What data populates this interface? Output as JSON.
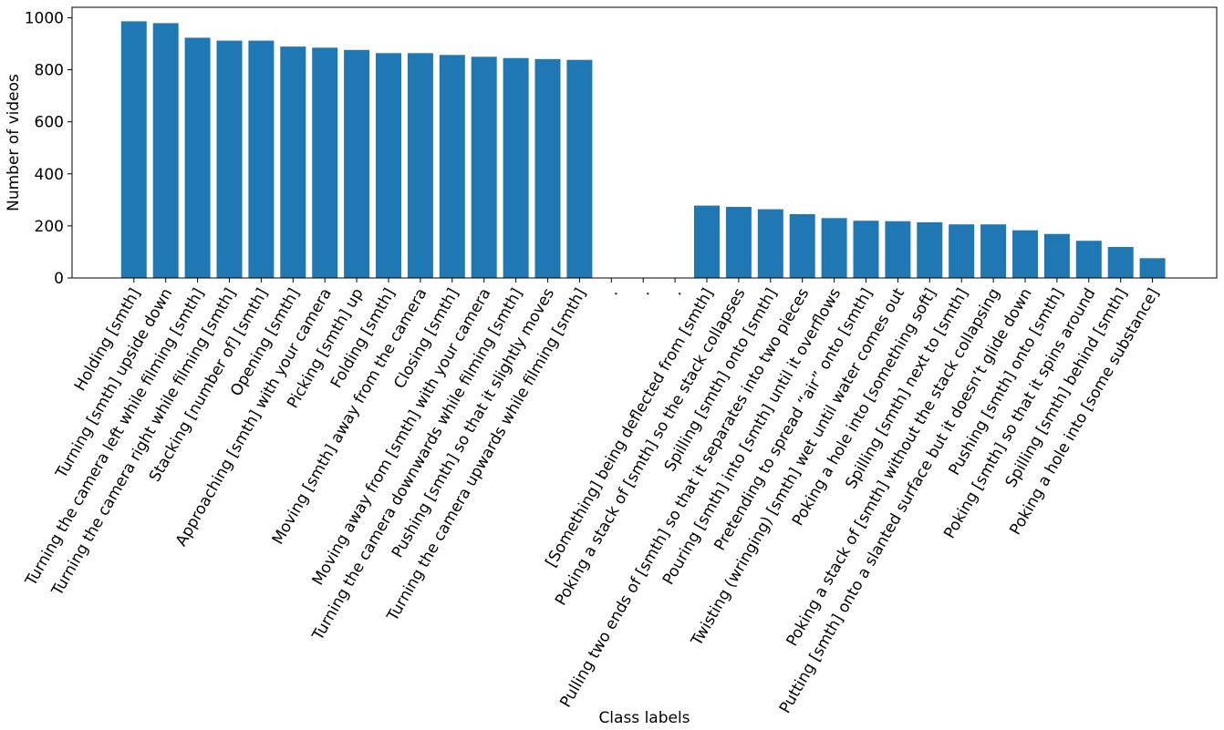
{
  "chart_data": {
    "type": "bar",
    "title": "",
    "xlabel": "Class labels",
    "ylabel": "Number of videos",
    "ylim": [
      0,
      1040
    ],
    "yticks": [
      0,
      200,
      400,
      600,
      800,
      1000
    ],
    "grid": false,
    "bar_color": "#1f77b4",
    "categories": [
      "Holding [smth]",
      "Turning [smth] upside down",
      "Turning the camera left while filming [smth]",
      "Turning the camera right while filming [smth]",
      "Stacking [number of] [smth]",
      "Opening [smth]",
      "Approaching [smth] with your camera",
      "Picking [smth] up",
      "Folding [smth]",
      "Moving [smth] away from the camera",
      "Closing [smth]",
      "Moving away from [smth] with your camera",
      "Turning the camera downwards while filming [smth]",
      "Pushing [smth] so that it slightly moves",
      "Turning the camera upwards while filming [smth]",
      ".",
      ".",
      ".",
      "[Something] being deflected from [smth]",
      "Poking a stack of [smth] so the stack collapses",
      "Spilling [smth] onto [smth]",
      "Pulling two ends of [smth] so that it separates into two pieces",
      "Pouring [smth] into [smth] until it overflows",
      "Pretending to spread “air” onto [smth]",
      "Twisting (wringing) [smth] wet until water comes out",
      "Poking a hole into [something soft]",
      "Spilling [smth] next to [smth]",
      "Poking a stack of [smth] without the stack collapsing",
      "Putting [smth] onto a slanted surface but it doesn’t glide down",
      "Pushing [smth] onto [smth]",
      "Poking [smth] so that it spins around",
      "Spilling [smth] behind [smth]",
      "Poking a hole into [some substance]"
    ],
    "values": [
      986,
      979,
      923,
      912,
      912,
      889,
      885,
      876,
      864,
      864,
      857,
      850,
      845,
      841,
      838,
      null,
      null,
      null,
      278,
      273,
      264,
      245,
      230,
      220,
      218,
      214,
      206,
      206,
      183,
      169,
      143,
      119,
      76
    ]
  }
}
